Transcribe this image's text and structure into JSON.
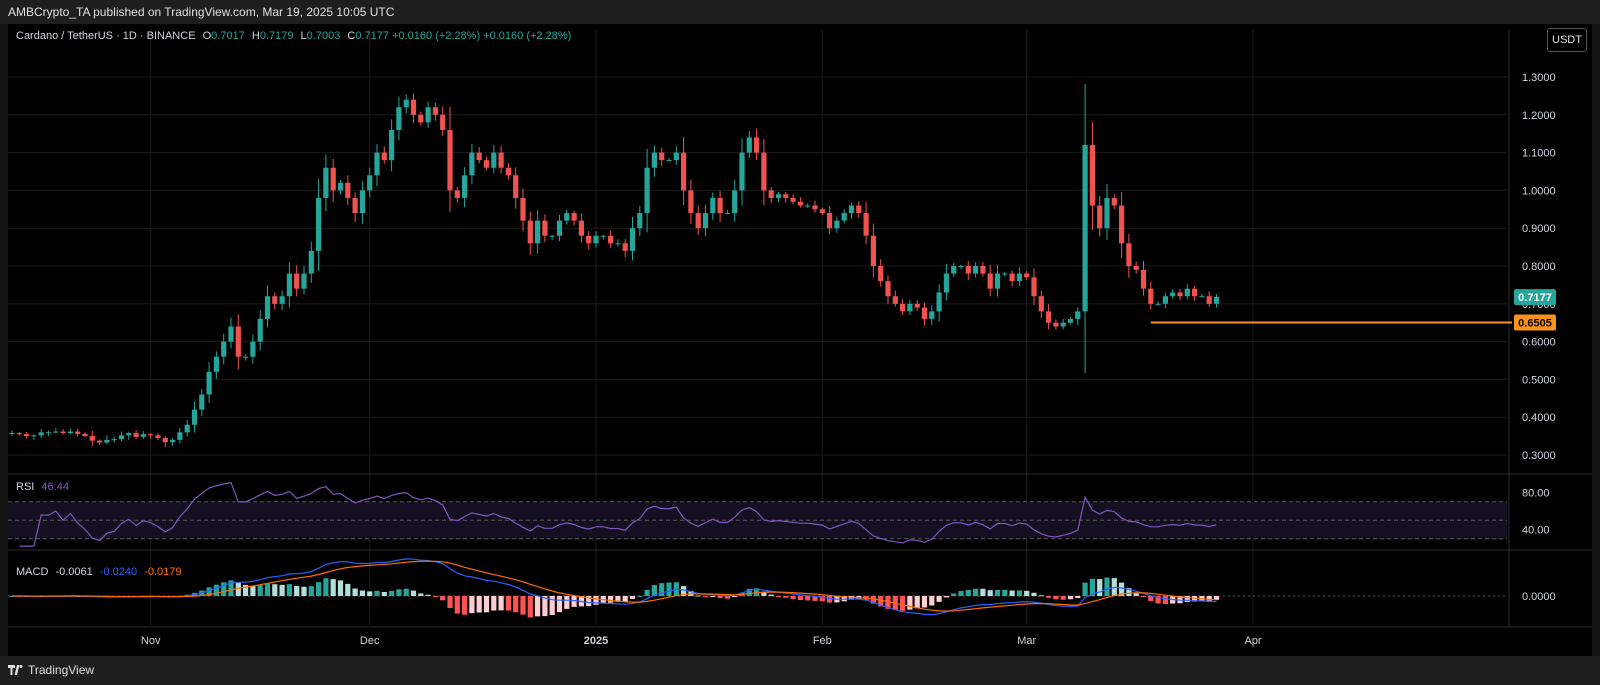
{
  "header": {
    "publisher_line": "AMBCrypto_TA published on TradingView.com, Mar 19, 2025 10:05 UTC"
  },
  "legend": {
    "symbol": "Cardano / TetherUS · 1D · BINANCE",
    "o_label": "O",
    "o": "0.7017",
    "h_label": "H",
    "h": "0.7179",
    "l_label": "L",
    "l": "0.7003",
    "c_label": "C",
    "c": "0.7177",
    "change": "+0.0160 (+2.28%)",
    "change2": "+0.0160 (+2.28%)"
  },
  "currency_button": "USDT",
  "rsi": {
    "label": "RSI",
    "value": "46.44",
    "ticks": [
      "80.00",
      "40.00"
    ]
  },
  "macd": {
    "label": "MACD",
    "v1": "-0.0061",
    "v2": "-0.0240",
    "v3": "-0.0179",
    "ticks": [
      "0.0000"
    ]
  },
  "footer": {
    "brand": "TradingView"
  },
  "colors": {
    "up": "#26a69a",
    "down": "#ef5350",
    "support": "#f7931a",
    "rsi_line": "#7e57c2",
    "macd_line": "#2962ff",
    "signal_line": "#ff6d00"
  },
  "chart_data": {
    "type": "candlestick",
    "title": "Cardano / TetherUS · 1D · BINANCE",
    "x_axis": {
      "labels": [
        "Nov",
        "Dec",
        "2025",
        "Feb",
        "Mar",
        "Apr"
      ]
    },
    "y_axis": {
      "labels": [
        "1.3000",
        "1.2000",
        "1.1000",
        "1.0000",
        "0.9000",
        "0.8000",
        "0.7000",
        "0.6000",
        "0.5000",
        "0.4000",
        "0.3000"
      ],
      "range": [
        0.26,
        1.4
      ]
    },
    "last_price": "0.7177",
    "support_level": "0.6505",
    "close_series_start": "2024-10-13",
    "close": [
      0.358,
      0.355,
      0.35,
      0.352,
      0.36,
      0.36,
      0.362,
      0.358,
      0.362,
      0.356,
      0.35,
      0.338,
      0.333,
      0.34,
      0.342,
      0.352,
      0.358,
      0.348,
      0.355,
      0.352,
      0.345,
      0.334,
      0.34,
      0.36,
      0.38,
      0.42,
      0.46,
      0.52,
      0.56,
      0.6,
      0.64,
      0.56,
      0.56,
      0.6,
      0.66,
      0.72,
      0.7,
      0.72,
      0.78,
      0.74,
      0.78,
      0.84,
      0.98,
      1.06,
      1.0,
      1.02,
      0.98,
      0.94,
      1.0,
      1.04,
      1.1,
      1.08,
      1.16,
      1.22,
      1.24,
      1.2,
      1.18,
      1.22,
      1.2,
      1.16,
      1.0,
      0.98,
      1.04,
      1.1,
      1.08,
      1.06,
      1.1,
      1.06,
      1.04,
      0.98,
      0.92,
      0.86,
      0.92,
      0.88,
      0.88,
      0.92,
      0.94,
      0.92,
      0.88,
      0.86,
      0.88,
      0.88,
      0.86,
      0.86,
      0.84,
      0.9,
      0.94,
      1.06,
      1.1,
      1.08,
      1.08,
      1.1,
      1.0,
      0.94,
      0.9,
      0.94,
      0.98,
      0.94,
      0.94,
      1.0,
      1.1,
      1.14,
      1.1,
      1.0,
      0.98,
      0.99,
      0.98,
      0.97,
      0.96,
      0.96,
      0.95,
      0.94,
      0.9,
      0.92,
      0.94,
      0.96,
      0.94,
      0.88,
      0.8,
      0.76,
      0.72,
      0.7,
      0.68,
      0.7,
      0.69,
      0.66,
      0.68,
      0.73,
      0.78,
      0.8,
      0.8,
      0.78,
      0.8,
      0.78,
      0.74,
      0.78,
      0.78,
      0.76,
      0.78,
      0.77,
      0.72,
      0.68,
      0.65,
      0.64,
      0.65,
      0.66,
      0.68,
      1.12,
      0.96,
      0.9,
      0.98,
      0.96,
      0.86,
      0.8,
      0.79,
      0.74,
      0.7,
      0.7,
      0.72,
      0.73,
      0.72,
      0.74,
      0.72,
      0.72,
      0.7,
      0.718
    ]
  }
}
